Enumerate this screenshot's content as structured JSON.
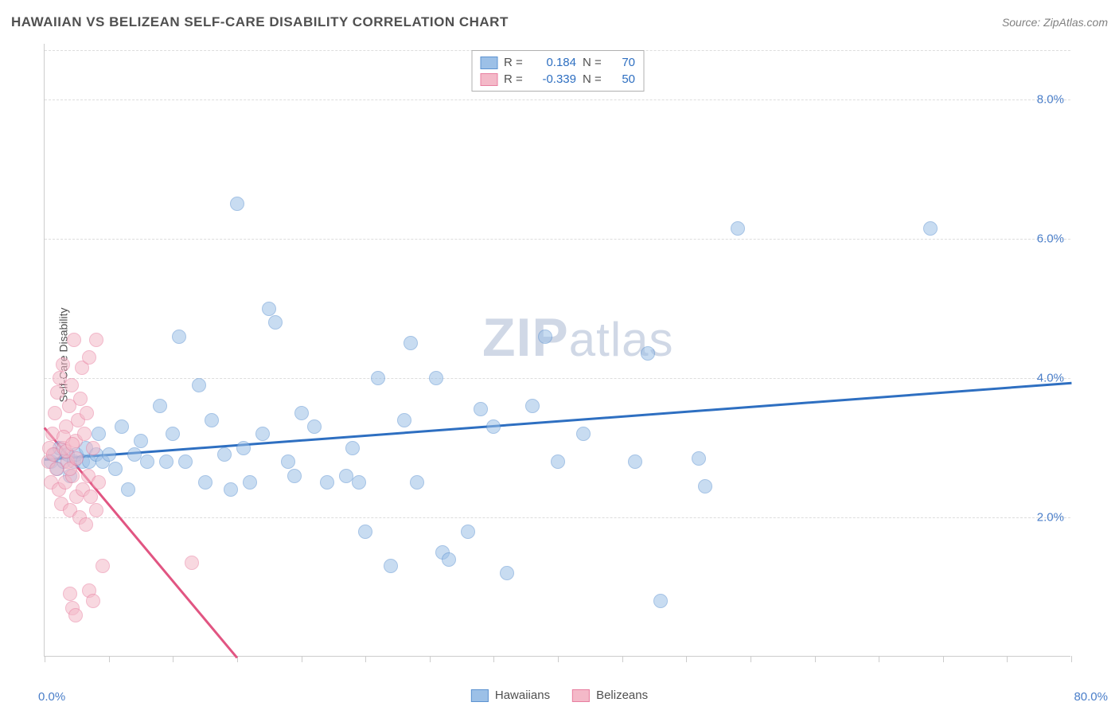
{
  "title": "HAWAIIAN VS BELIZEAN SELF-CARE DISABILITY CORRELATION CHART",
  "source_label": "Source: ZipAtlas.com",
  "ylabel": "Self-Care Disability",
  "watermark": "ZIPatlas",
  "chart": {
    "type": "scatter",
    "xlim": [
      0,
      80
    ],
    "ylim": [
      0,
      8.8
    ],
    "xaxis_min_label": "0.0%",
    "xaxis_max_label": "80.0%",
    "y_ticks": [
      {
        "v": 2.0,
        "label": "2.0%"
      },
      {
        "v": 4.0,
        "label": "4.0%"
      },
      {
        "v": 6.0,
        "label": "6.0%"
      },
      {
        "v": 8.0,
        "label": "8.0%"
      }
    ],
    "x_ticks_minor": [
      0,
      5,
      10,
      15,
      20,
      25,
      30,
      35,
      40,
      45,
      50,
      55,
      60,
      65,
      70,
      75,
      80
    ],
    "background_color": "#ffffff",
    "grid_color": "#dddddd",
    "point_radius": 9,
    "point_opacity": 0.55,
    "series": [
      {
        "name": "Hawaiians",
        "fill_color": "#9cc0e7",
        "stroke_color": "#5d93d1",
        "trend_color": "#2e6fc1",
        "R": "0.184",
        "N": "70",
        "trend": {
          "x1": 0,
          "y1": 2.85,
          "x2": 80,
          "y2": 3.95
        },
        "points": [
          [
            0.5,
            2.8
          ],
          [
            0.8,
            2.9
          ],
          [
            1.0,
            2.7
          ],
          [
            1.2,
            3.0
          ],
          [
            1.5,
            2.8
          ],
          [
            1.8,
            2.9
          ],
          [
            2.0,
            2.6
          ],
          [
            2.3,
            2.8
          ],
          [
            2.5,
            2.9
          ],
          [
            3.0,
            2.8
          ],
          [
            3.2,
            3.0
          ],
          [
            3.5,
            2.8
          ],
          [
            4.0,
            2.9
          ],
          [
            4.2,
            3.2
          ],
          [
            4.5,
            2.8
          ],
          [
            5.0,
            2.9
          ],
          [
            5.5,
            2.7
          ],
          [
            6.0,
            3.3
          ],
          [
            6.5,
            2.4
          ],
          [
            7.0,
            2.9
          ],
          [
            7.5,
            3.1
          ],
          [
            8.0,
            2.8
          ],
          [
            9.0,
            3.6
          ],
          [
            9.5,
            2.8
          ],
          [
            10.0,
            3.2
          ],
          [
            10.5,
            4.6
          ],
          [
            11.0,
            2.8
          ],
          [
            12.0,
            3.9
          ],
          [
            12.5,
            2.5
          ],
          [
            13.0,
            3.4
          ],
          [
            14.0,
            2.9
          ],
          [
            14.5,
            2.4
          ],
          [
            15.0,
            6.5
          ],
          [
            15.5,
            3.0
          ],
          [
            16.0,
            2.5
          ],
          [
            17.0,
            3.2
          ],
          [
            17.5,
            5.0
          ],
          [
            18.0,
            4.8
          ],
          [
            19.0,
            2.8
          ],
          [
            19.5,
            2.6
          ],
          [
            20.0,
            3.5
          ],
          [
            21.0,
            3.3
          ],
          [
            22.0,
            2.5
          ],
          [
            23.5,
            2.6
          ],
          [
            24.0,
            3.0
          ],
          [
            24.5,
            2.5
          ],
          [
            25.0,
            1.8
          ],
          [
            26.0,
            4.0
          ],
          [
            27.0,
            1.3
          ],
          [
            28.0,
            3.4
          ],
          [
            28.5,
            4.5
          ],
          [
            29.0,
            2.5
          ],
          [
            30.5,
            4.0
          ],
          [
            31.0,
            1.5
          ],
          [
            31.5,
            1.4
          ],
          [
            33.0,
            1.8
          ],
          [
            34.0,
            3.55
          ],
          [
            35.0,
            3.3
          ],
          [
            36.0,
            1.2
          ],
          [
            38.0,
            3.6
          ],
          [
            39.0,
            4.6
          ],
          [
            40.0,
            2.8
          ],
          [
            42.0,
            3.2
          ],
          [
            46.0,
            2.8
          ],
          [
            47.0,
            4.35
          ],
          [
            48.0,
            0.8
          ],
          [
            51.0,
            2.85
          ],
          [
            51.5,
            2.45
          ],
          [
            54.0,
            6.15
          ],
          [
            69.0,
            6.15
          ]
        ]
      },
      {
        "name": "Belizeans",
        "fill_color": "#f4b9c8",
        "stroke_color": "#e87fa0",
        "trend_color": "#e15582",
        "R": "-0.339",
        "N": "50",
        "trend": {
          "x1": 0,
          "y1": 3.3,
          "x2": 15,
          "y2": 0.0
        },
        "points": [
          [
            0.3,
            2.8
          ],
          [
            0.4,
            3.0
          ],
          [
            0.5,
            2.5
          ],
          [
            0.6,
            3.2
          ],
          [
            0.7,
            2.9
          ],
          [
            0.8,
            3.5
          ],
          [
            0.9,
            2.7
          ],
          [
            1.0,
            3.8
          ],
          [
            1.1,
            2.4
          ],
          [
            1.2,
            4.0
          ],
          [
            1.3,
            2.2
          ],
          [
            1.4,
            4.2
          ],
          [
            1.5,
            3.0
          ],
          [
            1.6,
            2.5
          ],
          [
            1.7,
            3.3
          ],
          [
            1.8,
            2.8
          ],
          [
            1.9,
            3.6
          ],
          [
            2.0,
            2.1
          ],
          [
            2.1,
            3.9
          ],
          [
            2.2,
            2.6
          ],
          [
            2.3,
            4.55
          ],
          [
            2.4,
            3.1
          ],
          [
            2.5,
            2.3
          ],
          [
            2.6,
            3.4
          ],
          [
            2.7,
            2.0
          ],
          [
            2.8,
            3.7
          ],
          [
            2.9,
            4.15
          ],
          [
            3.0,
            2.4
          ],
          [
            3.1,
            3.2
          ],
          [
            3.2,
            1.9
          ],
          [
            3.3,
            3.5
          ],
          [
            3.4,
            2.6
          ],
          [
            3.5,
            4.3
          ],
          [
            3.6,
            2.3
          ],
          [
            3.8,
            3.0
          ],
          [
            4.0,
            2.1
          ],
          [
            4.2,
            2.5
          ],
          [
            4.5,
            1.3
          ],
          [
            2.0,
            0.9
          ],
          [
            2.2,
            0.7
          ],
          [
            2.4,
            0.6
          ],
          [
            3.5,
            0.95
          ],
          [
            3.8,
            0.8
          ],
          [
            4.0,
            4.55
          ],
          [
            1.5,
            3.15
          ],
          [
            1.7,
            2.95
          ],
          [
            2.0,
            2.7
          ],
          [
            2.2,
            3.05
          ],
          [
            11.5,
            1.35
          ],
          [
            2.5,
            2.85
          ]
        ]
      }
    ],
    "stats_value_color": "#2e6fc1",
    "bottom_legend": [
      {
        "label": "Hawaiians",
        "fill": "#9cc0e7",
        "stroke": "#5d93d1"
      },
      {
        "label": "Belizeans",
        "fill": "#f4b9c8",
        "stroke": "#e87fa0"
      }
    ]
  }
}
